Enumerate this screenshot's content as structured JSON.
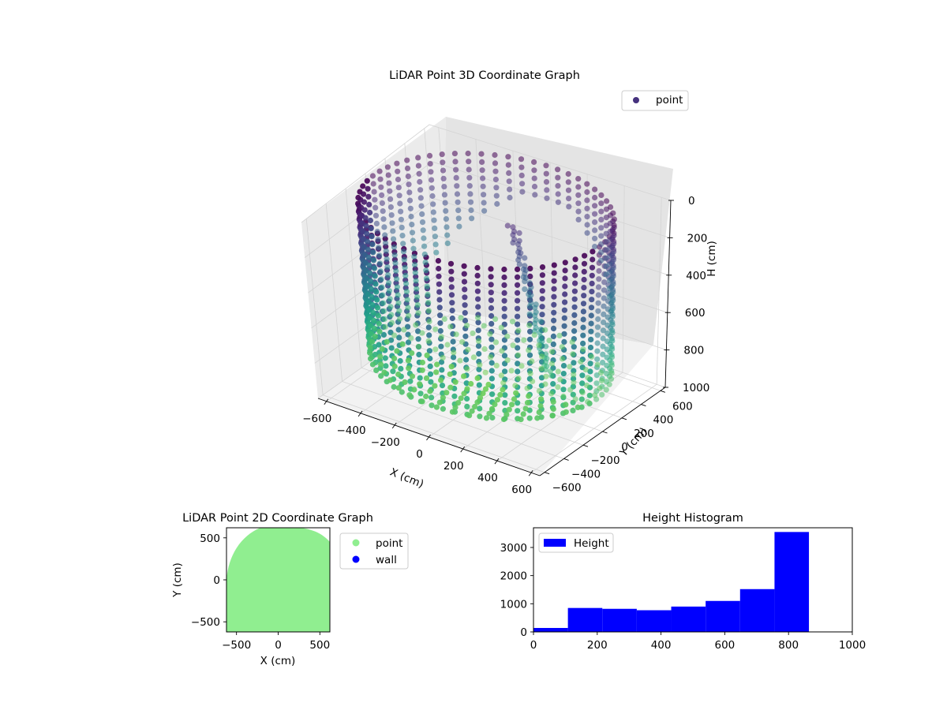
{
  "chart_data": [
    {
      "type": "scatter",
      "projection": "3d",
      "title": "LiDAR Point 3D Coordinate Graph",
      "xlabel": "X (cm)",
      "ylabel": "Y (cm)",
      "zlabel": "H (cm)",
      "xlim": [
        -650,
        650
      ],
      "ylim": [
        -650,
        650
      ],
      "zlim": [
        1000,
        0
      ],
      "xticks": [
        "−600",
        "−400",
        "−200",
        "0",
        "200",
        "400",
        "600"
      ],
      "yticks": [
        "−600",
        "−400",
        "−200",
        "0",
        "200",
        "400",
        "600"
      ],
      "zticks": [
        "0",
        "200",
        "400",
        "600",
        "800",
        "1000"
      ],
      "z_inverted": true,
      "colormap": "viridis",
      "series": [
        {
          "name": "point",
          "color": "#46327e"
        }
      ],
      "legend": "top-right",
      "description": "Cylindrical wall of points approx radius 600 cm, heights 0-870 cm, open toward +y, plus interior debris"
    },
    {
      "type": "scatter",
      "title": "LiDAR Point 2D Coordinate Graph",
      "xlabel": "X (cm)",
      "ylabel": "Y (cm)",
      "xlim": [
        -620,
        620
      ],
      "ylim": [
        -620,
        620
      ],
      "xticks": [
        "−500",
        "0",
        "500"
      ],
      "yticks": [
        "−500",
        "0",
        "500"
      ],
      "series": [
        {
          "name": "point",
          "color": "#90ee90"
        },
        {
          "name": "wall",
          "color": "#0000ff"
        }
      ],
      "legend": "outside-right"
    },
    {
      "type": "bar",
      "subtype": "histogram",
      "title": "Height Histogram",
      "xlim": [
        0,
        1000
      ],
      "ylim": [
        0,
        3700
      ],
      "xticks": [
        "0",
        "200",
        "400",
        "600",
        "800",
        "1000"
      ],
      "yticks": [
        "0",
        "1000",
        "2000",
        "3000"
      ],
      "bins": [
        0,
        108,
        216,
        324,
        432,
        540,
        648,
        756,
        864
      ],
      "counts": [
        140,
        850,
        820,
        770,
        900,
        1100,
        1520,
        3550
      ],
      "series": [
        {
          "name": "Height",
          "color": "#0000ff"
        }
      ],
      "legend": "top-left"
    }
  ]
}
